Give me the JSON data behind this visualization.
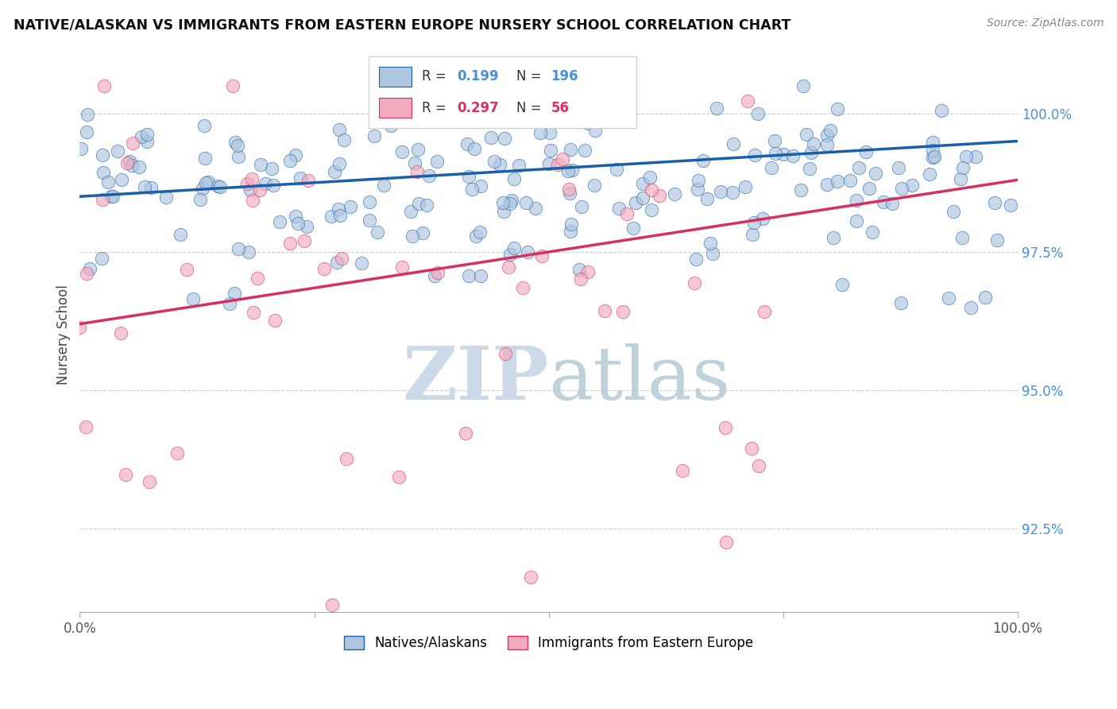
{
  "title": "NATIVE/ALASKAN VS IMMIGRANTS FROM EASTERN EUROPE NURSERY SCHOOL CORRELATION CHART",
  "source": "Source: ZipAtlas.com",
  "ylabel": "Nursery School",
  "legend_label_blue": "Natives/Alaskans",
  "legend_label_pink": "Immigrants from Eastern Europe",
  "R_blue": 0.199,
  "N_blue": 196,
  "R_pink": 0.297,
  "N_pink": 56,
  "xlim": [
    0.0,
    100.0
  ],
  "ylim": [
    91.0,
    101.0
  ],
  "yticks": [
    92.5,
    95.0,
    97.5,
    100.0
  ],
  "ytick_labels": [
    "92.5%",
    "95.0%",
    "97.5%",
    "100.0%"
  ],
  "xticks": [
    0.0,
    25.0,
    50.0,
    75.0,
    100.0
  ],
  "xtick_labels": [
    "0.0%",
    "",
    "",
    "",
    "100.0%"
  ],
  "color_blue": "#aec6e0",
  "color_pink": "#f2aabe",
  "line_color_blue": "#1a5fa8",
  "line_color_pink": "#d63060",
  "tick_color_blue": "#4a90d9",
  "background_color": "#ffffff",
  "watermark_color": "#ccd9e8",
  "blue_line_y0": 98.5,
  "blue_line_y1": 99.5,
  "pink_line_y0": 96.2,
  "pink_line_y1": 98.8
}
